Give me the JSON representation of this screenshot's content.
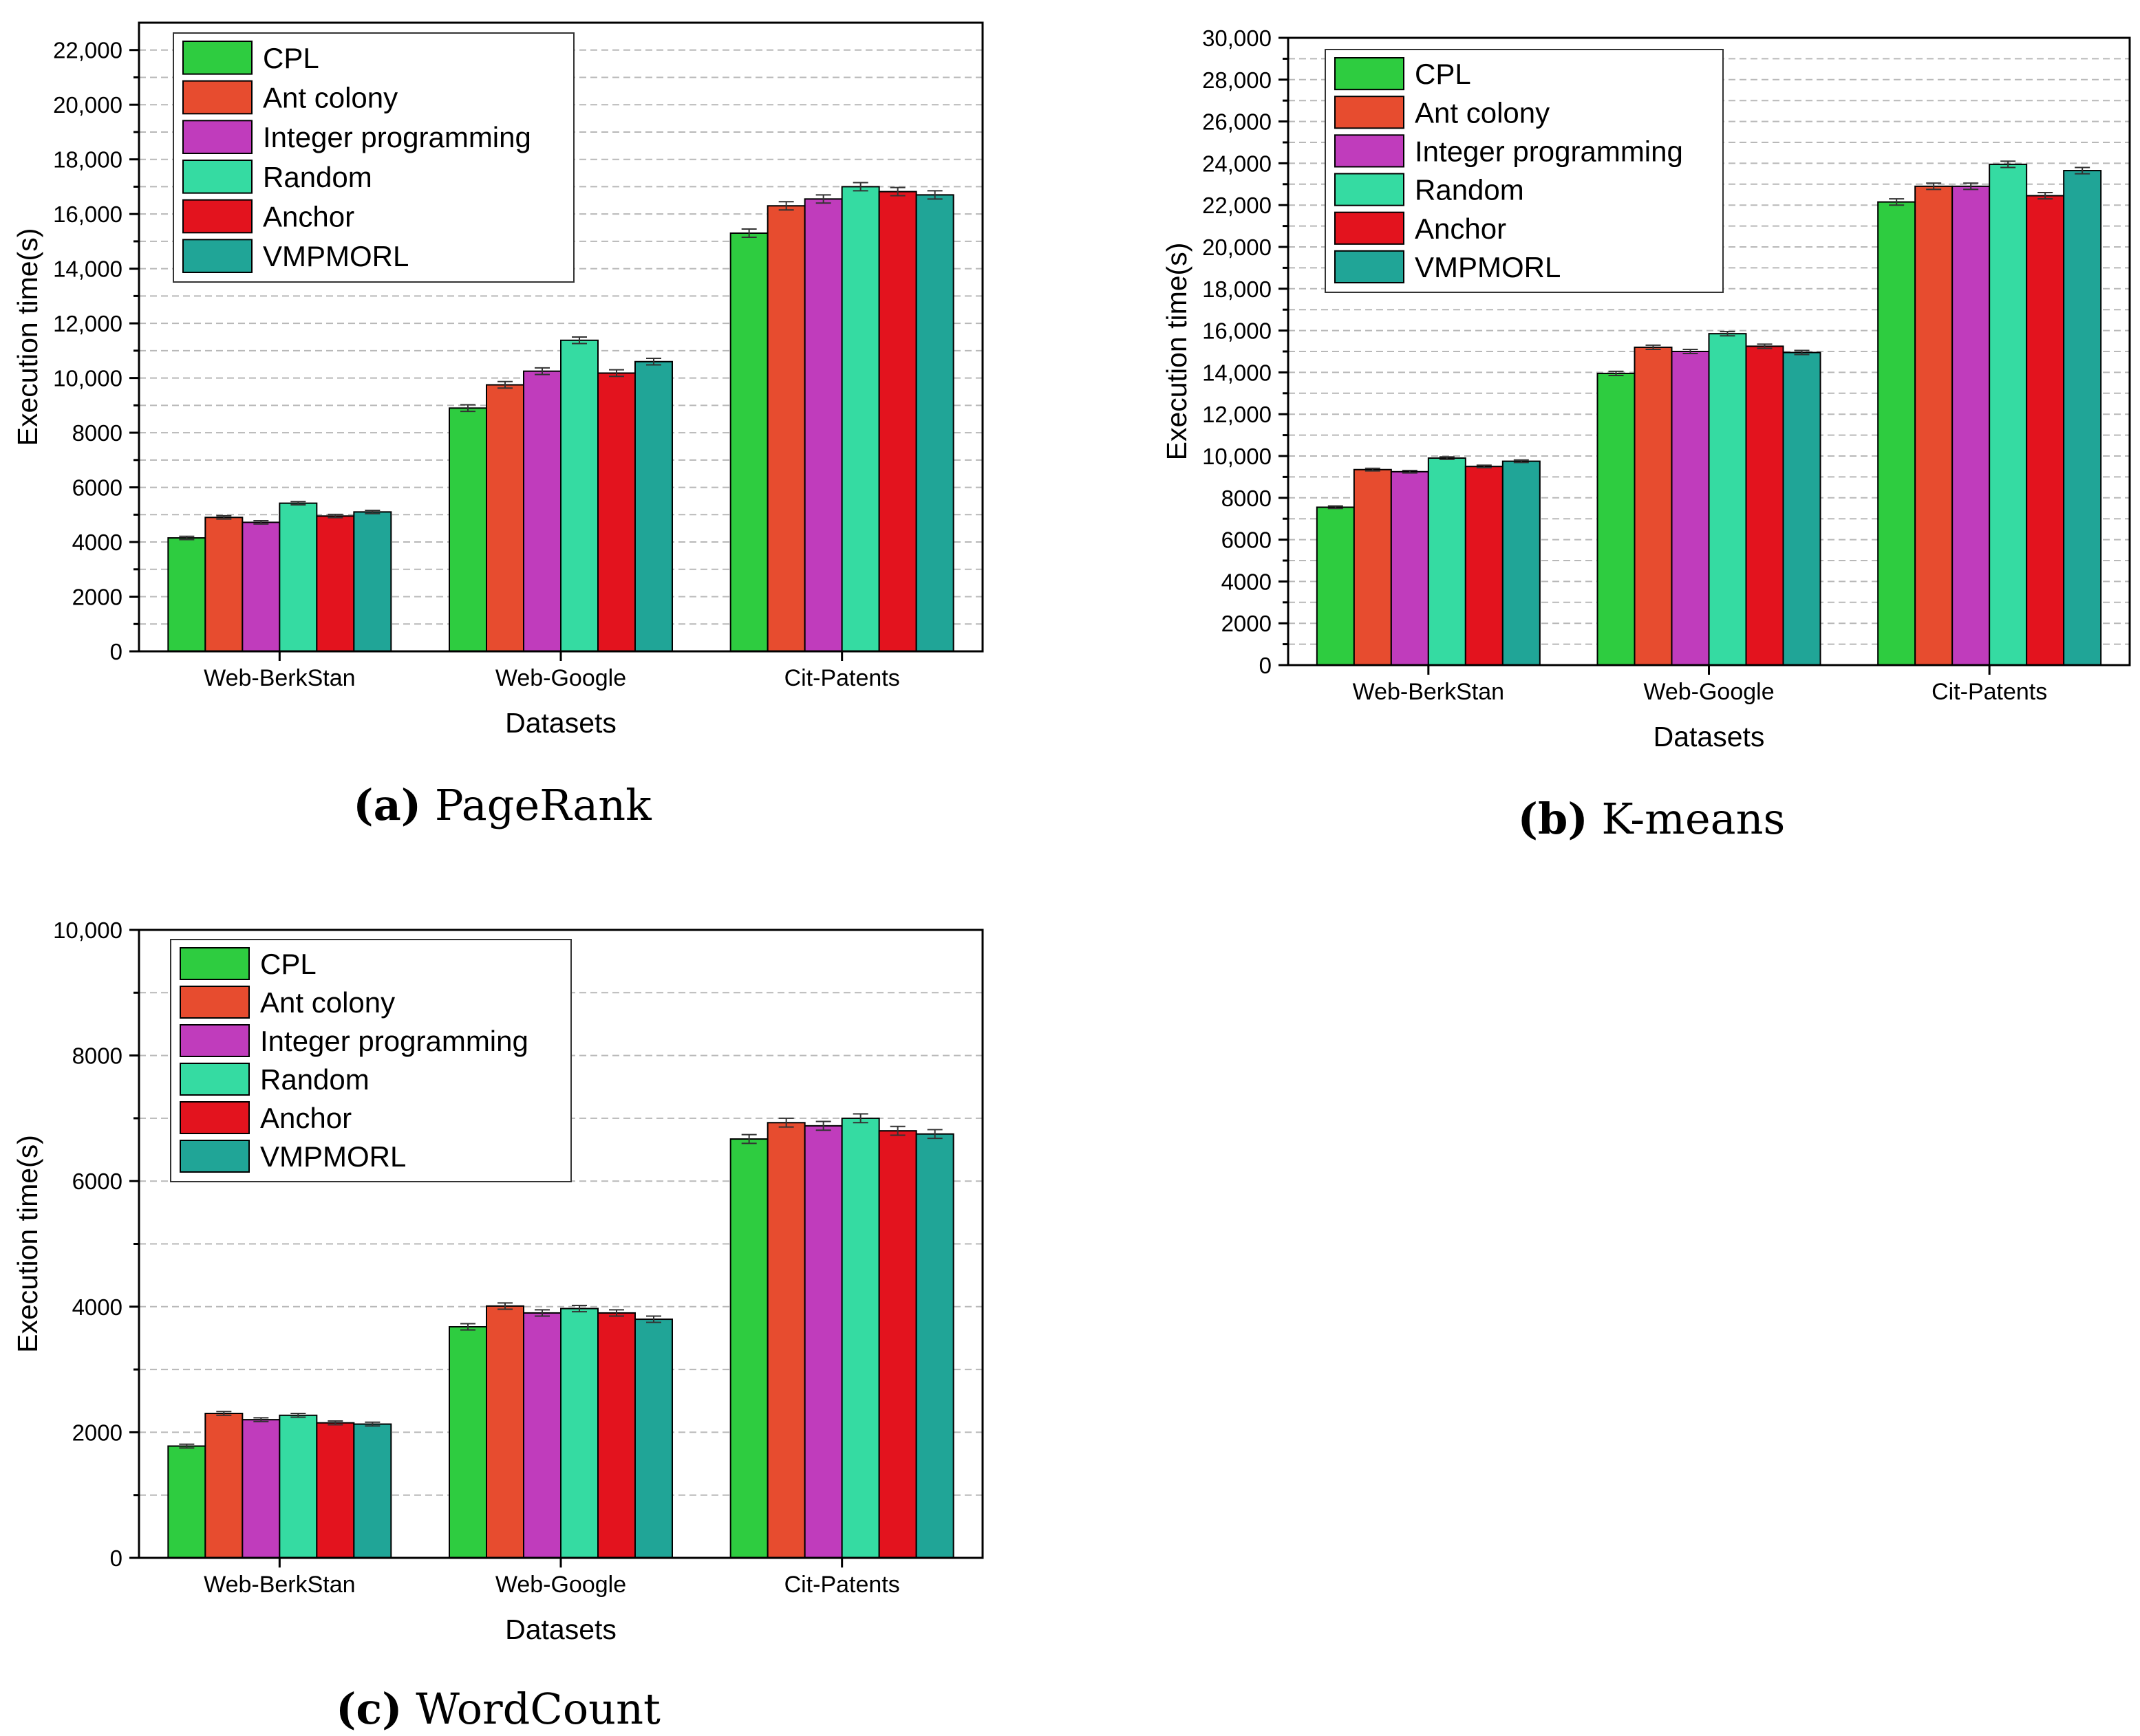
{
  "colors": {
    "series": [
      "#2ecc40",
      "#e74c2f",
      "#c03cbc",
      "#35dba2",
      "#e3131e",
      "#20a597"
    ],
    "axis": "#000000",
    "grid": "#b8b8b8",
    "error_bar": "#333333"
  },
  "chart_data": [
    {
      "type": "bar",
      "id": "a",
      "caption_letter": "(a)",
      "caption_text": "PageRank",
      "title": "",
      "xlabel": "Datasets",
      "ylabel": "Execution time(s)",
      "ylim": [
        0,
        23000
      ],
      "grid": true,
      "legend_position": "top-left",
      "yticks": [
        {
          "value": 0,
          "label": "0"
        },
        {
          "value": 2000,
          "label": "2000"
        },
        {
          "value": 4000,
          "label": "4000"
        },
        {
          "value": 6000,
          "label": "6000"
        },
        {
          "value": 8000,
          "label": "8000"
        },
        {
          "value": 10000,
          "label": "10,000"
        },
        {
          "value": 12000,
          "label": "12,000"
        },
        {
          "value": 14000,
          "label": "14,000"
        },
        {
          "value": 16000,
          "label": "16,000"
        },
        {
          "value": 18000,
          "label": "18,000"
        },
        {
          "value": 20000,
          "label": "20,000"
        },
        {
          "value": 22000,
          "label": "22,000"
        }
      ],
      "categories": [
        "Web-BerkStan",
        "Web-Google",
        "Cit-Patents"
      ],
      "series": [
        {
          "name": "CPL",
          "values": [
            4150,
            8900,
            15300
          ],
          "errors": [
            60,
            120,
            150
          ]
        },
        {
          "name": "Ant colony",
          "values": [
            4900,
            9750,
            16300
          ],
          "errors": [
            60,
            120,
            150
          ]
        },
        {
          "name": "Integer programming",
          "values": [
            4720,
            10250,
            16550
          ],
          "errors": [
            60,
            120,
            150
          ]
        },
        {
          "name": "Random",
          "values": [
            5420,
            11380,
            17000
          ],
          "errors": [
            60,
            120,
            150
          ]
        },
        {
          "name": "Anchor",
          "values": [
            4950,
            10180,
            16820
          ],
          "errors": [
            60,
            120,
            150
          ]
        },
        {
          "name": "VMPMORL",
          "values": [
            5100,
            10600,
            16700
          ],
          "errors": [
            60,
            120,
            150
          ]
        }
      ]
    },
    {
      "type": "bar",
      "id": "b",
      "caption_letter": "(b)",
      "caption_text": "K-means",
      "title": "",
      "xlabel": "Datasets",
      "ylabel": "Execution time(s)",
      "ylim": [
        0,
        30000
      ],
      "grid": true,
      "legend_position": "top-left",
      "yticks": [
        {
          "value": 0,
          "label": "0"
        },
        {
          "value": 2000,
          "label": "2000"
        },
        {
          "value": 4000,
          "label": "4000"
        },
        {
          "value": 6000,
          "label": "6000"
        },
        {
          "value": 8000,
          "label": "8000"
        },
        {
          "value": 10000,
          "label": "10,000"
        },
        {
          "value": 12000,
          "label": "12,000"
        },
        {
          "value": 14000,
          "label": "14,000"
        },
        {
          "value": 16000,
          "label": "16,000"
        },
        {
          "value": 18000,
          "label": "18,000"
        },
        {
          "value": 20000,
          "label": "20,000"
        },
        {
          "value": 22000,
          "label": "22,000"
        },
        {
          "value": 24000,
          "label": "24,000"
        },
        {
          "value": 26000,
          "label": "26,000"
        },
        {
          "value": 28000,
          "label": "28,000"
        },
        {
          "value": 30000,
          "label": "30,000"
        }
      ],
      "categories": [
        "Web-BerkStan",
        "Web-Google",
        "Cit-Patents"
      ],
      "series": [
        {
          "name": "CPL",
          "values": [
            7550,
            13950,
            22150
          ],
          "errors": [
            60,
            100,
            150
          ]
        },
        {
          "name": "Ant colony",
          "values": [
            9350,
            15200,
            22900
          ],
          "errors": [
            60,
            100,
            150
          ]
        },
        {
          "name": "Integer programming",
          "values": [
            9250,
            15000,
            22900
          ],
          "errors": [
            60,
            100,
            150
          ]
        },
        {
          "name": "Random",
          "values": [
            9900,
            15850,
            23950
          ],
          "errors": [
            60,
            100,
            150
          ]
        },
        {
          "name": "Anchor",
          "values": [
            9500,
            15250,
            22450
          ],
          "errors": [
            60,
            100,
            150
          ]
        },
        {
          "name": "VMPMORL",
          "values": [
            9750,
            14950,
            23650
          ],
          "errors": [
            60,
            100,
            150
          ]
        }
      ]
    },
    {
      "type": "bar",
      "id": "c",
      "caption_letter": "(c)",
      "caption_text": "WordCount",
      "title": "",
      "xlabel": "Datasets",
      "ylabel": "Execution time(s)",
      "ylim": [
        0,
        10000
      ],
      "grid": true,
      "legend_position": "top-left",
      "yticks": [
        {
          "value": 0,
          "label": "0"
        },
        {
          "value": 2000,
          "label": "2000"
        },
        {
          "value": 4000,
          "label": "4000"
        },
        {
          "value": 6000,
          "label": "6000"
        },
        {
          "value": 8000,
          "label": "8000"
        },
        {
          "value": 10000,
          "label": "10,000"
        }
      ],
      "categories": [
        "Web-BerkStan",
        "Web-Google",
        "Cit-Patents"
      ],
      "series": [
        {
          "name": "CPL",
          "values": [
            1780,
            3680,
            6670
          ],
          "errors": [
            30,
            50,
            70
          ]
        },
        {
          "name": "Ant colony",
          "values": [
            2300,
            4010,
            6930
          ],
          "errors": [
            30,
            50,
            70
          ]
        },
        {
          "name": "Integer programming",
          "values": [
            2200,
            3900,
            6880
          ],
          "errors": [
            30,
            50,
            70
          ]
        },
        {
          "name": "Random",
          "values": [
            2270,
            3970,
            7000
          ],
          "errors": [
            30,
            50,
            70
          ]
        },
        {
          "name": "Anchor",
          "values": [
            2150,
            3900,
            6800
          ],
          "errors": [
            30,
            50,
            70
          ]
        },
        {
          "name": "VMPMORL",
          "values": [
            2130,
            3800,
            6750
          ],
          "errors": [
            30,
            50,
            70
          ]
        }
      ]
    }
  ]
}
